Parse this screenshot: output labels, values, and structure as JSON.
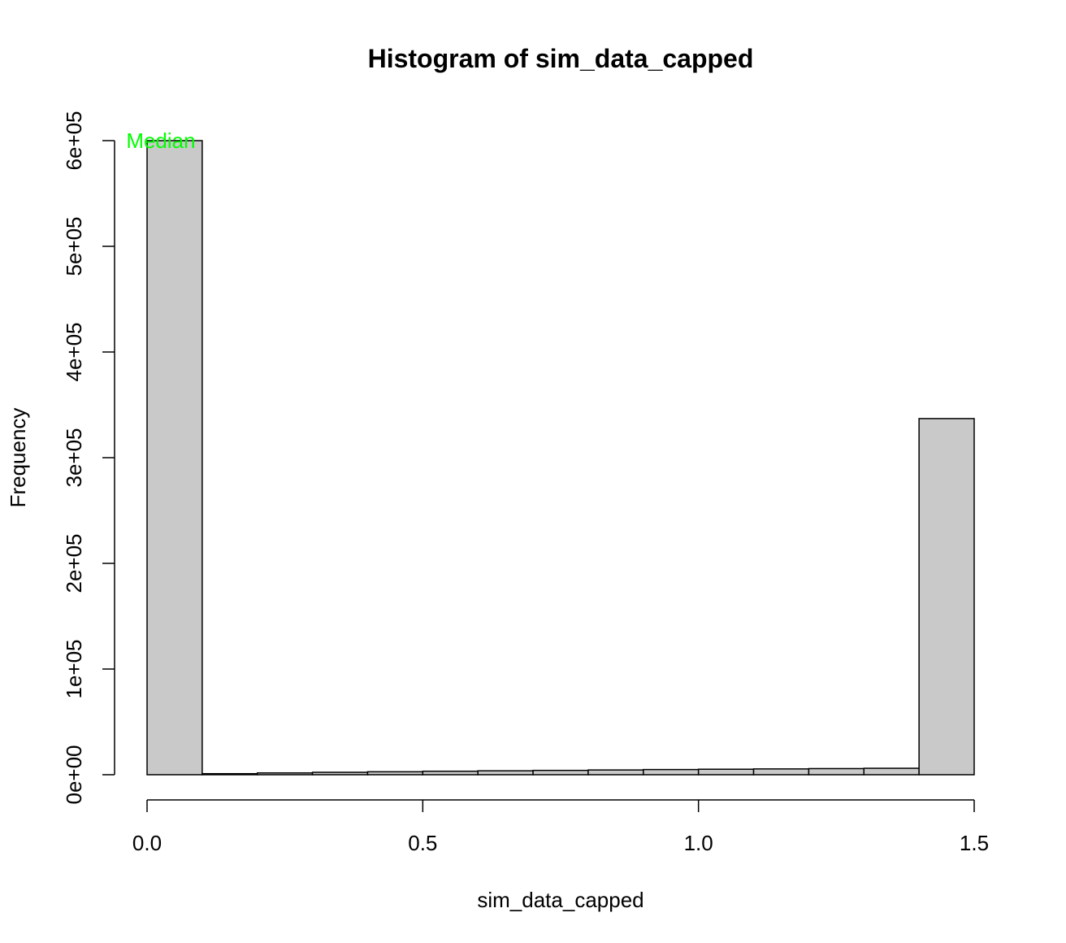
{
  "chart_data": {
    "type": "bar",
    "title": "Histogram of sim_data_capped",
    "xlabel": "sim_data_capped",
    "ylabel": "Frequency",
    "bins": [
      {
        "from": 0.0,
        "to": 0.1,
        "count": 600000
      },
      {
        "from": 0.1,
        "to": 0.2,
        "count": 1000
      },
      {
        "from": 0.2,
        "to": 0.3,
        "count": 1700
      },
      {
        "from": 0.3,
        "to": 0.4,
        "count": 2300
      },
      {
        "from": 0.4,
        "to": 0.5,
        "count": 2800
      },
      {
        "from": 0.5,
        "to": 0.6,
        "count": 3300
      },
      {
        "from": 0.6,
        "to": 0.7,
        "count": 3700
      },
      {
        "from": 0.7,
        "to": 0.8,
        "count": 4100
      },
      {
        "from": 0.8,
        "to": 0.9,
        "count": 4500
      },
      {
        "from": 0.9,
        "to": 1.0,
        "count": 4900
      },
      {
        "from": 1.0,
        "to": 1.1,
        "count": 5200
      },
      {
        "from": 1.1,
        "to": 1.2,
        "count": 5500
      },
      {
        "from": 1.2,
        "to": 1.3,
        "count": 5800
      },
      {
        "from": 1.3,
        "to": 1.4,
        "count": 6100
      },
      {
        "from": 1.4,
        "to": 1.5,
        "count": 337000
      }
    ],
    "xlim": [
      0.0,
      1.5
    ],
    "ylim": [
      0,
      600000
    ],
    "x_ticks": [
      {
        "value": 0.0,
        "label": "0.0"
      },
      {
        "value": 0.5,
        "label": "0.5"
      },
      {
        "value": 1.0,
        "label": "1.0"
      },
      {
        "value": 1.5,
        "label": "1.5"
      }
    ],
    "y_ticks": [
      {
        "value": 0,
        "label": "0e+00"
      },
      {
        "value": 100000,
        "label": "1e+05"
      },
      {
        "value": 200000,
        "label": "2e+05"
      },
      {
        "value": 300000,
        "label": "3e+05"
      },
      {
        "value": 400000,
        "label": "4e+05"
      },
      {
        "value": 500000,
        "label": "5e+05"
      },
      {
        "value": 600000,
        "label": "6e+05"
      }
    ],
    "bar_fill_color": "#c9c9c9",
    "bar_border_color": "#000000",
    "grid": false,
    "annotations": [
      {
        "text": "Median",
        "x": 0.025,
        "y": 600000,
        "color": "#00ff00"
      }
    ]
  }
}
